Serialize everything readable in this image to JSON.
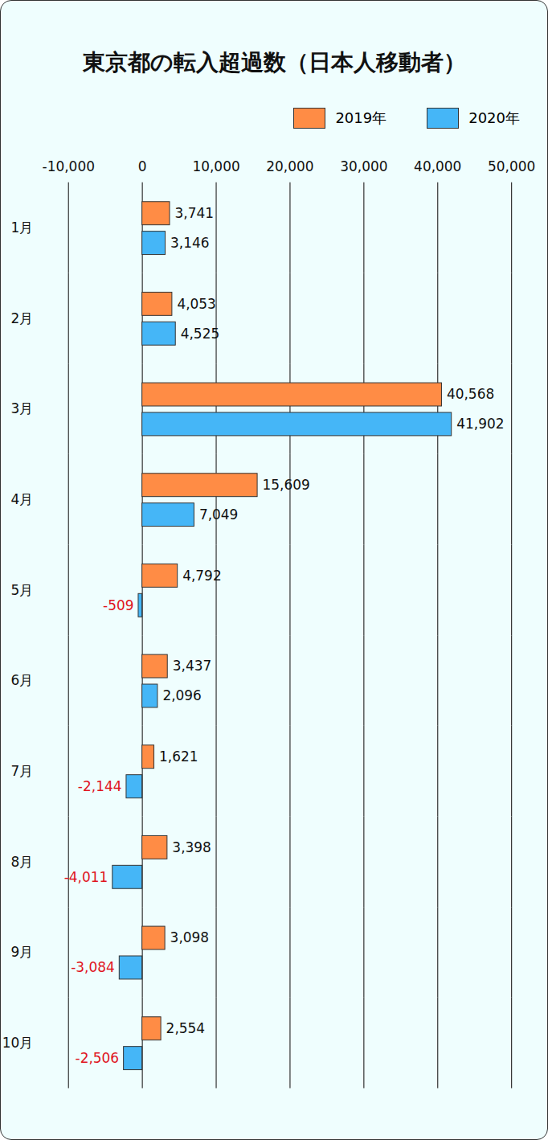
{
  "chart_data": {
    "type": "bar",
    "title": "東京都の転入超過数（日本人移動者）",
    "orientation": "horizontal",
    "categories": [
      "1月",
      "2月",
      "3月",
      "4月",
      "5月",
      "6月",
      "7月",
      "8月",
      "9月",
      "10月"
    ],
    "series": [
      {
        "name": "2019年",
        "color": "#ff8c45",
        "values": [
          3741,
          4053,
          40568,
          15609,
          4792,
          3437,
          1621,
          3398,
          3098,
          2554
        ],
        "value_labels": [
          "3,741",
          "4,053",
          "40,568",
          "15,609",
          "4,792",
          "3,437",
          "1,621",
          "3,398",
          "3,098",
          "2,554"
        ]
      },
      {
        "name": "2020年",
        "color": "#45b6f7",
        "values": [
          3146,
          4525,
          41902,
          7049,
          -509,
          2096,
          -2144,
          -4011,
          -3084,
          -2506
        ],
        "value_labels": [
          "3,146",
          "4,525",
          "41,902",
          "7,049",
          "-509",
          "2,096",
          "-2,144",
          "-4,011",
          "-3,084",
          "-2,506"
        ]
      }
    ],
    "xlim": [
      -10000,
      50000
    ],
    "xticks": [
      {
        "value": -10000,
        "label": "-10,000"
      },
      0,
      {
        "value": 10000,
        "label": "10,000"
      },
      {
        "value": 20000,
        "label": "20,000"
      },
      {
        "value": 30000,
        "label": "30,000"
      },
      {
        "value": 40000,
        "label": "40,000"
      },
      {
        "value": 50000,
        "label": "50,000"
      }
    ],
    "grid": true,
    "data_labels": true,
    "legend": "top-right"
  }
}
